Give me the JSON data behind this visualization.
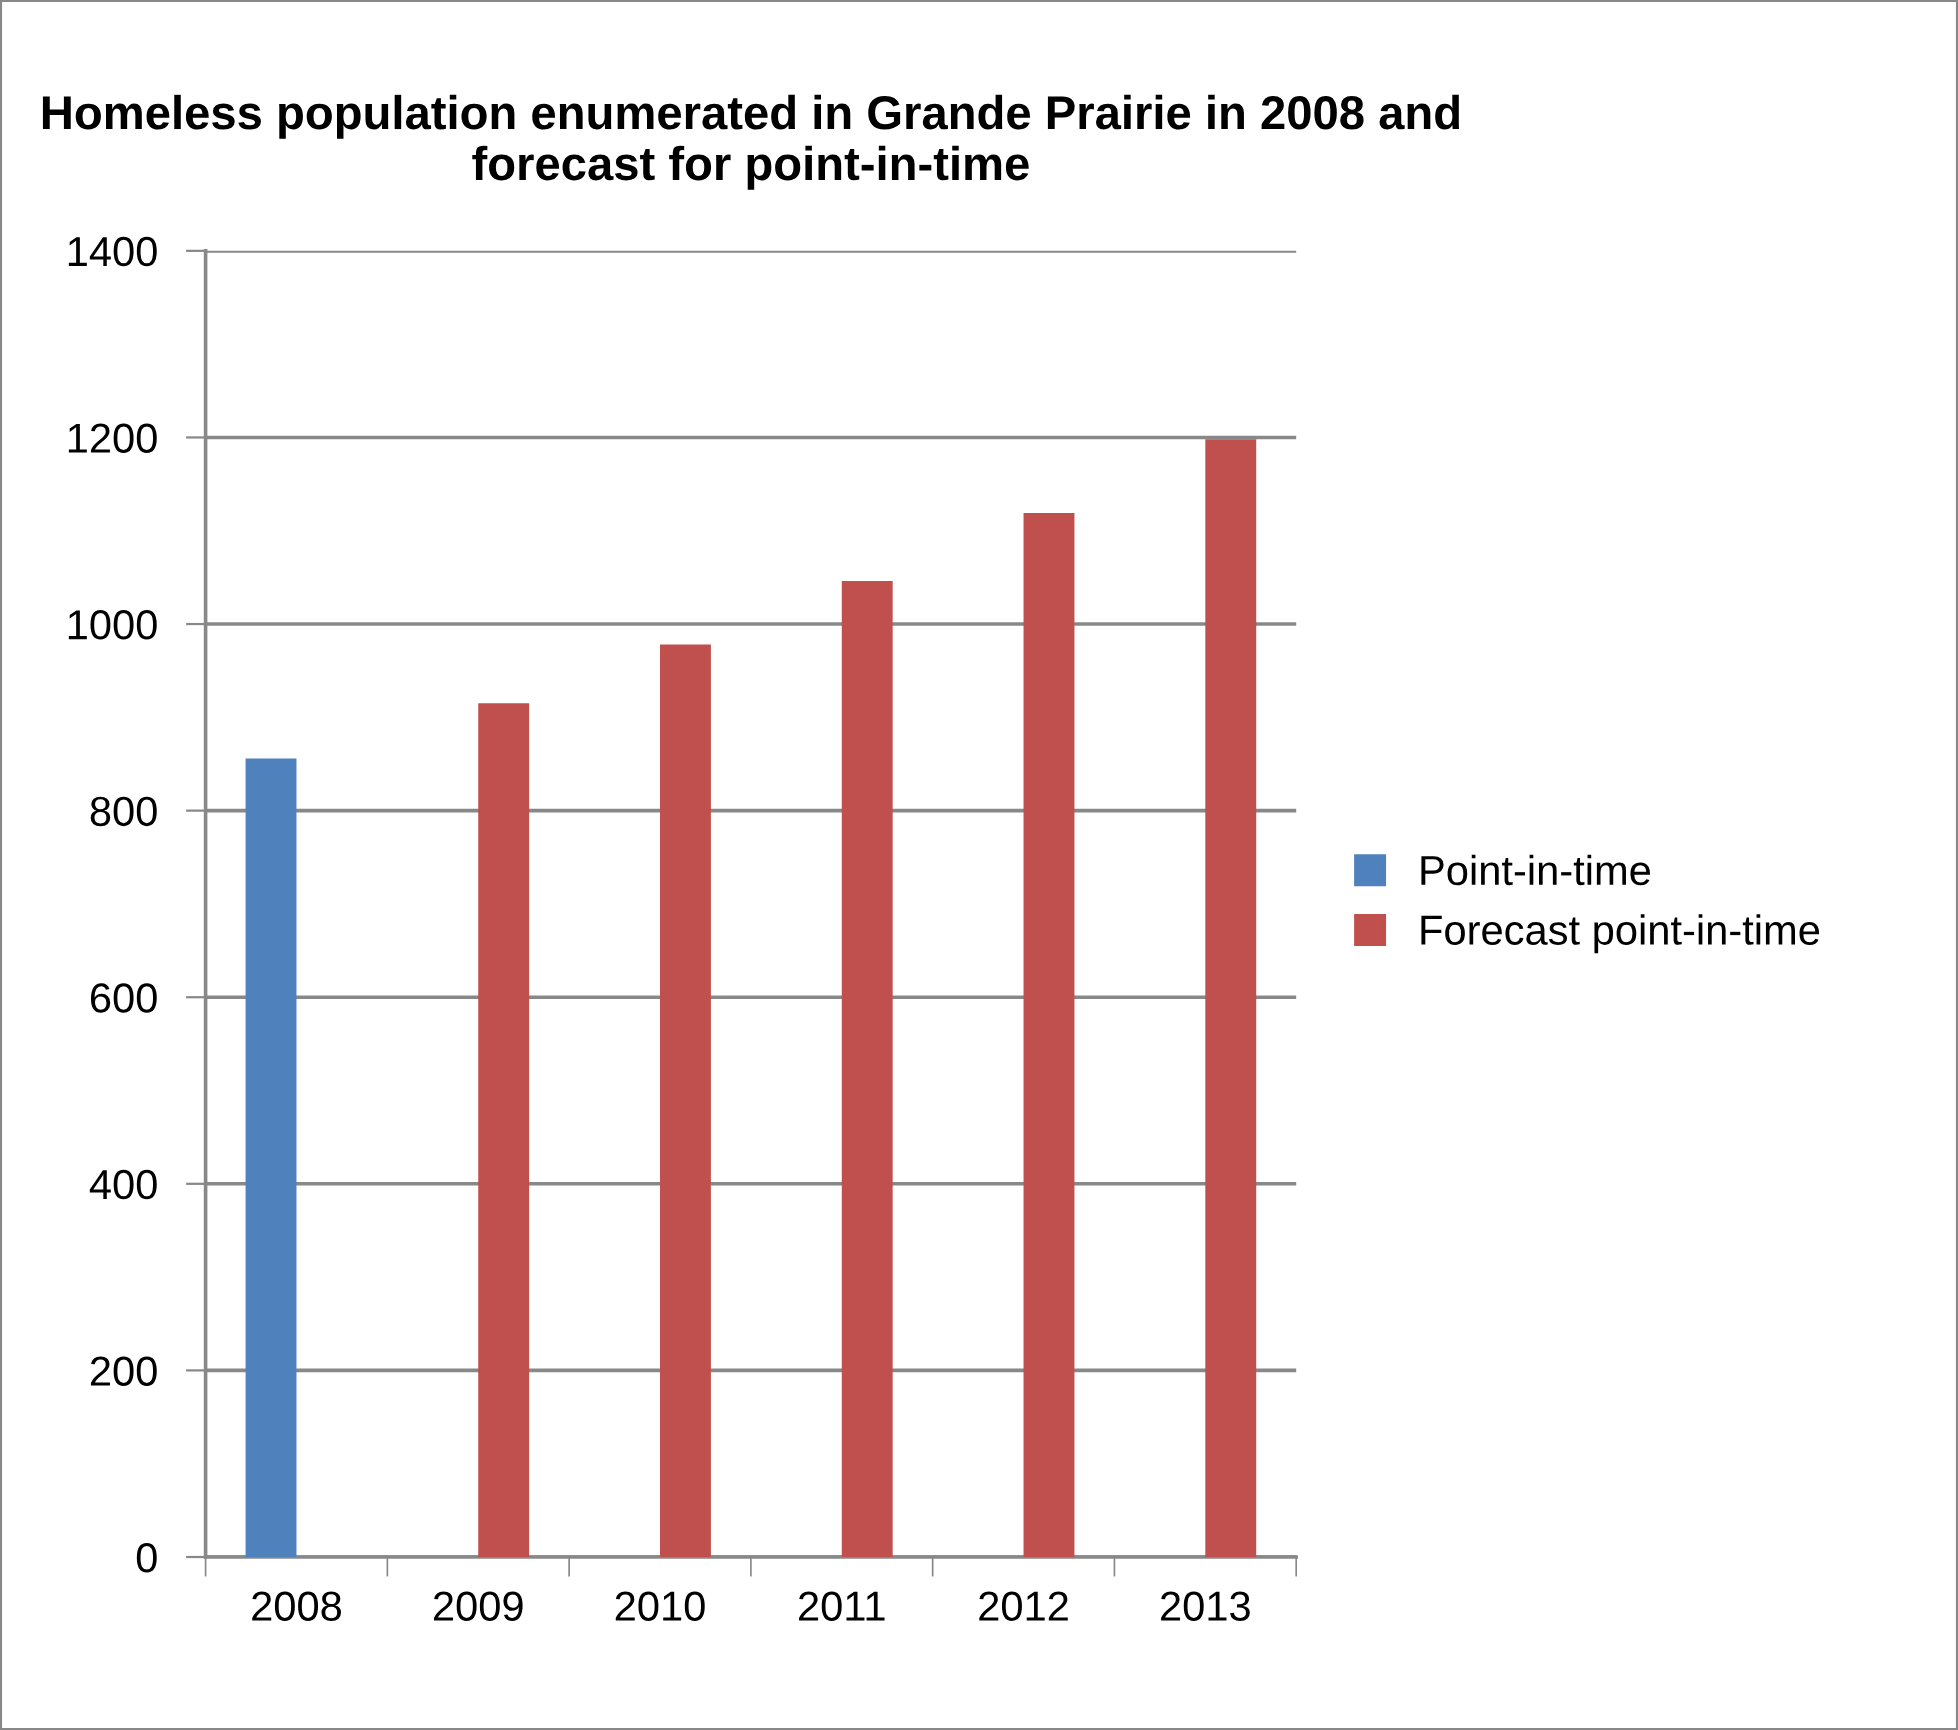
{
  "chart_data": {
    "type": "bar",
    "title": "Homeless population enumerated in Grande Prairie in 2008 and forecast for point-in-time",
    "categories": [
      "2008",
      "2009",
      "2010",
      "2011",
      "2012",
      "2013"
    ],
    "series": [
      {
        "name": "Point-in-time",
        "color": "#4f81bd",
        "values": [
          856,
          null,
          null,
          null,
          null,
          null
        ]
      },
      {
        "name": "Forecast point-in-time",
        "color": "#c0504d",
        "values": [
          null,
          915,
          978,
          1046,
          1119,
          1198
        ]
      }
    ],
    "ylim": [
      0,
      1400
    ],
    "yticks": [
      0,
      200,
      400,
      600,
      800,
      1000,
      1200,
      1400
    ],
    "grid": "y",
    "legend": "right"
  }
}
